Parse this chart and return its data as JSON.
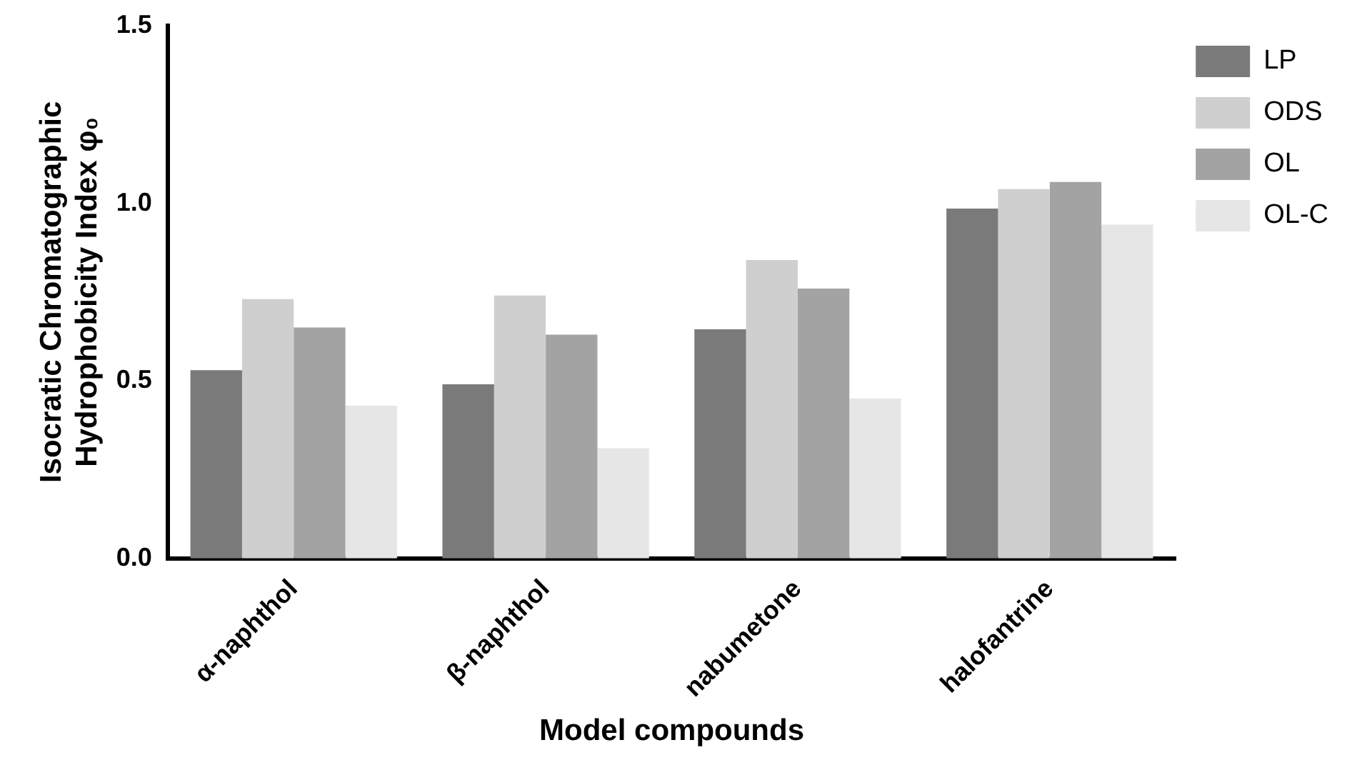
{
  "chart_data": {
    "type": "bar",
    "xlabel": "Model compounds",
    "ylabel": "Isocratic Chromatographic Hydrophobicity Index φ₀",
    "categories": [
      "α-naphthol",
      "β-naphthol",
      "nabumetone",
      "halofantrine"
    ],
    "series": [
      {
        "name": "LP",
        "color": "#7a7a7a",
        "values": [
          0.53,
          0.49,
          0.645,
          0.985
        ]
      },
      {
        "name": "ODS",
        "color": "#cfcfcf",
        "values": [
          0.73,
          0.74,
          0.84,
          1.04
        ]
      },
      {
        "name": "OL",
        "color": "#a3a3a3",
        "values": [
          0.65,
          0.63,
          0.76,
          1.06
        ]
      },
      {
        "name": "OL-C",
        "color": "#e6e6e6",
        "values": [
          0.43,
          0.31,
          0.45,
          0.94
        ]
      }
    ],
    "ylim": [
      0,
      1.5
    ],
    "yticks": [
      {
        "value": 0,
        "label": "0.0"
      },
      {
        "value": 0.5,
        "label": "0.5"
      },
      {
        "value": 1,
        "label": "1.0"
      },
      {
        "value": 1.5,
        "label": "1.5"
      }
    ],
    "grid": false,
    "legend": "top right"
  }
}
